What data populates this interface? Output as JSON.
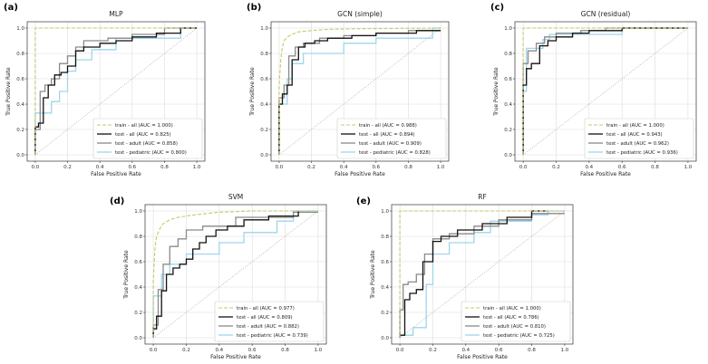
{
  "figure": {
    "width": 781,
    "height": 402
  },
  "chart_data": [
    {
      "id": "a",
      "panel_label": "(a)",
      "type": "line",
      "title": "MLP",
      "xlabel": "False Positive Rate",
      "ylabel": "True Positive Rate",
      "xlim": [
        -0.05,
        1.05
      ],
      "ylim": [
        -0.05,
        1.05
      ],
      "xticks": [
        0.0,
        0.2,
        0.4,
        0.6,
        0.8,
        1.0
      ],
      "yticks": [
        0.0,
        0.2,
        0.4,
        0.6,
        0.8,
        1.0
      ],
      "legend_loc": "lower right",
      "diagonal": true,
      "series": [
        {
          "name": "train - all (AUC = 1.000)",
          "color": "#c8c86a",
          "style": "dashed",
          "width": 1.1,
          "x": [
            0,
            0,
            1
          ],
          "y": [
            0,
            1,
            1
          ]
        },
        {
          "name": "test - all (AUC = 0.825)",
          "color": "#111111",
          "style": "solid",
          "width": 1.3,
          "x": [
            0,
            0,
            0.02,
            0.02,
            0.05,
            0.05,
            0.08,
            0.08,
            0.12,
            0.12,
            0.16,
            0.16,
            0.2,
            0.2,
            0.25,
            0.25,
            0.3,
            0.3,
            0.4,
            0.4,
            0.5,
            0.5,
            0.6,
            0.6,
            0.75,
            0.75,
            0.9,
            0.9,
            1
          ],
          "y": [
            0,
            0.22,
            0.22,
            0.25,
            0.25,
            0.45,
            0.45,
            0.55,
            0.55,
            0.63,
            0.63,
            0.65,
            0.65,
            0.7,
            0.7,
            0.82,
            0.82,
            0.85,
            0.85,
            0.88,
            0.88,
            0.9,
            0.9,
            0.93,
            0.93,
            0.96,
            0.96,
            1.0,
            1.0
          ]
        },
        {
          "name": "test - adult (AUC = 0.858)",
          "color": "#8a8a8a",
          "style": "solid",
          "width": 1.3,
          "x": [
            0,
            0,
            0.03,
            0.03,
            0.06,
            0.06,
            0.1,
            0.1,
            0.15,
            0.15,
            0.2,
            0.2,
            0.25,
            0.25,
            0.3,
            0.3,
            0.45,
            0.45,
            0.6,
            0.6,
            0.8,
            0.8,
            1
          ],
          "y": [
            0,
            0.2,
            0.2,
            0.5,
            0.5,
            0.55,
            0.55,
            0.6,
            0.6,
            0.72,
            0.72,
            0.78,
            0.78,
            0.85,
            0.85,
            0.9,
            0.9,
            0.92,
            0.92,
            0.95,
            0.95,
            1.0,
            1.0
          ]
        },
        {
          "name": "test - pediatric (AUC = 0.800)",
          "color": "#9fd6ea",
          "style": "solid",
          "width": 1.3,
          "x": [
            0,
            0,
            0.1,
            0.1,
            0.15,
            0.15,
            0.2,
            0.2,
            0.25,
            0.25,
            0.35,
            0.35,
            0.5,
            0.5,
            0.9,
            0.9,
            1
          ],
          "y": [
            0,
            0.33,
            0.33,
            0.42,
            0.42,
            0.5,
            0.5,
            0.66,
            0.66,
            0.75,
            0.75,
            0.83,
            0.83,
            0.92,
            0.92,
            1.0,
            1.0
          ]
        }
      ]
    },
    {
      "id": "b",
      "panel_label": "(b)",
      "type": "line",
      "title": "GCN (simple)",
      "xlabel": "False Positive Rate",
      "ylabel": "True Positive Rate",
      "xlim": [
        -0.05,
        1.05
      ],
      "ylim": [
        -0.05,
        1.05
      ],
      "xticks": [
        0.0,
        0.2,
        0.4,
        0.6,
        0.8,
        1.0
      ],
      "yticks": [
        0.0,
        0.2,
        0.4,
        0.6,
        0.8,
        1.0
      ],
      "legend_loc": "lower right",
      "diagonal": true,
      "series": [
        {
          "name": "train - all (AUC = 0.988)",
          "color": "#c8c86a",
          "style": "dashed",
          "width": 1.1,
          "x": [
            0,
            0,
            0.01,
            0.02,
            0.03,
            0.05,
            0.08,
            0.12,
            0.2,
            0.3,
            0.5,
            1
          ],
          "y": [
            0,
            0.55,
            0.75,
            0.85,
            0.9,
            0.93,
            0.95,
            0.97,
            0.98,
            0.99,
            0.995,
            1.0
          ]
        },
        {
          "name": "test - all (AUC = 0.894)",
          "color": "#111111",
          "style": "solid",
          "width": 1.3,
          "x": [
            0,
            0,
            0.02,
            0.02,
            0.05,
            0.05,
            0.08,
            0.08,
            0.12,
            0.12,
            0.16,
            0.16,
            0.22,
            0.22,
            0.3,
            0.3,
            0.45,
            0.45,
            0.6,
            0.6,
            0.85,
            0.85,
            1
          ],
          "y": [
            0,
            0.4,
            0.4,
            0.48,
            0.48,
            0.55,
            0.55,
            0.75,
            0.75,
            0.85,
            0.85,
            0.88,
            0.88,
            0.9,
            0.9,
            0.92,
            0.92,
            0.94,
            0.94,
            0.96,
            0.96,
            0.98,
            0.98
          ]
        },
        {
          "name": "test - adult (AUC = 0.909)",
          "color": "#8a8a8a",
          "style": "solid",
          "width": 1.3,
          "x": [
            0,
            0,
            0.03,
            0.03,
            0.06,
            0.06,
            0.1,
            0.1,
            0.15,
            0.15,
            0.25,
            0.25,
            0.4,
            0.4,
            0.6,
            0.6,
            0.8,
            0.8,
            1
          ],
          "y": [
            0,
            0.45,
            0.45,
            0.55,
            0.55,
            0.78,
            0.78,
            0.85,
            0.85,
            0.88,
            0.88,
            0.92,
            0.92,
            0.94,
            0.94,
            0.96,
            0.96,
            0.98,
            0.98
          ]
        },
        {
          "name": "test - pediatric (AUC = 0.828)",
          "color": "#9fd6ea",
          "style": "solid",
          "width": 1.3,
          "x": [
            0,
            0,
            0.05,
            0.05,
            0.08,
            0.08,
            0.15,
            0.15,
            0.4,
            0.4,
            0.6,
            0.6,
            0.95,
            0.95,
            1
          ],
          "y": [
            0,
            0.4,
            0.4,
            0.6,
            0.6,
            0.72,
            0.72,
            0.8,
            0.8,
            0.88,
            0.88,
            0.92,
            0.92,
            1.0,
            1.0
          ]
        }
      ]
    },
    {
      "id": "c",
      "panel_label": "(c)",
      "type": "line",
      "title": "GCN (residual)",
      "xlabel": "False Positive Rate",
      "ylabel": "True Positive Rate",
      "xlim": [
        -0.05,
        1.05
      ],
      "ylim": [
        -0.05,
        1.05
      ],
      "xticks": [
        0.0,
        0.2,
        0.4,
        0.6,
        0.8,
        1.0
      ],
      "yticks": [
        0.0,
        0.2,
        0.4,
        0.6,
        0.8,
        1.0
      ],
      "legend_loc": "lower right",
      "diagonal": true,
      "series": [
        {
          "name": "train - all (AUC = 1.000)",
          "color": "#c8c86a",
          "style": "dashed",
          "width": 1.1,
          "x": [
            0,
            0,
            1
          ],
          "y": [
            0,
            1,
            1
          ]
        },
        {
          "name": "test - all (AUC = 0.943)",
          "color": "#111111",
          "style": "solid",
          "width": 1.3,
          "x": [
            0,
            0,
            0.02,
            0.02,
            0.05,
            0.05,
            0.1,
            0.1,
            0.15,
            0.15,
            0.2,
            0.2,
            0.3,
            0.3,
            0.4,
            0.4,
            0.6,
            0.6,
            1
          ],
          "y": [
            0,
            0.55,
            0.55,
            0.68,
            0.68,
            0.72,
            0.72,
            0.86,
            0.86,
            0.9,
            0.9,
            0.93,
            0.93,
            0.96,
            0.96,
            0.98,
            0.98,
            1.0,
            1.0
          ]
        },
        {
          "name": "test - adult (AUC = 0.962)",
          "color": "#8a8a8a",
          "style": "solid",
          "width": 1.3,
          "x": [
            0,
            0,
            0.03,
            0.03,
            0.08,
            0.08,
            0.13,
            0.13,
            0.2,
            0.2,
            0.35,
            0.35,
            0.5,
            0.5,
            1
          ],
          "y": [
            0,
            0.72,
            0.72,
            0.82,
            0.82,
            0.88,
            0.88,
            0.93,
            0.93,
            0.96,
            0.96,
            0.98,
            0.98,
            1.0,
            1.0
          ]
        },
        {
          "name": "test - pediatric (AUC = 0.936)",
          "color": "#9fd6ea",
          "style": "solid",
          "width": 1.3,
          "x": [
            0,
            0,
            0.02,
            0.02,
            0.12,
            0.12,
            0.16,
            0.16,
            0.6,
            0.6,
            1
          ],
          "y": [
            0,
            0.5,
            0.5,
            0.84,
            0.84,
            0.91,
            0.91,
            0.95,
            0.95,
            1.0,
            1.0
          ]
        }
      ]
    },
    {
      "id": "d",
      "panel_label": "(d)",
      "type": "line",
      "title": "SVM",
      "xlabel": "False Positive Rate",
      "ylabel": "True Positive Rate",
      "xlim": [
        -0.05,
        1.05
      ],
      "ylim": [
        -0.05,
        1.05
      ],
      "xticks": [
        0.0,
        0.2,
        0.4,
        0.6,
        0.8,
        1.0
      ],
      "yticks": [
        0.0,
        0.2,
        0.4,
        0.6,
        0.8,
        1.0
      ],
      "legend_loc": "lower right",
      "diagonal": true,
      "series": [
        {
          "name": "train - all (AUC = 0.977)",
          "color": "#c8c86a",
          "style": "dashed",
          "width": 1.1,
          "x": [
            0,
            0,
            0.01,
            0.02,
            0.04,
            0.06,
            0.1,
            0.15,
            0.25,
            0.4,
            0.6,
            1
          ],
          "y": [
            0,
            0.45,
            0.7,
            0.8,
            0.86,
            0.9,
            0.93,
            0.95,
            0.97,
            0.99,
            1.0,
            1.0
          ]
        },
        {
          "name": "test - all (AUC = 0.809)",
          "color": "#111111",
          "style": "solid",
          "width": 1.3,
          "x": [
            0,
            0,
            0.02,
            0.02,
            0.05,
            0.05,
            0.08,
            0.08,
            0.12,
            0.12,
            0.16,
            0.16,
            0.2,
            0.2,
            0.24,
            0.24,
            0.28,
            0.28,
            0.32,
            0.32,
            0.38,
            0.38,
            0.45,
            0.45,
            0.55,
            0.55,
            0.7,
            0.7,
            0.88,
            0.88
          ],
          "y": [
            0,
            0.07,
            0.07,
            0.17,
            0.17,
            0.37,
            0.37,
            0.5,
            0.5,
            0.55,
            0.55,
            0.58,
            0.58,
            0.62,
            0.62,
            0.7,
            0.7,
            0.75,
            0.75,
            0.8,
            0.8,
            0.85,
            0.85,
            0.88,
            0.88,
            0.93,
            0.93,
            0.96,
            0.96,
            1.0
          ]
        },
        {
          "name": "test - adult (AUC = 0.882)",
          "color": "#8a8a8a",
          "style": "solid",
          "width": 1.3,
          "x": [
            0,
            0,
            0.03,
            0.03,
            0.06,
            0.06,
            0.1,
            0.1,
            0.15,
            0.15,
            0.2,
            0.2,
            0.3,
            0.3,
            0.5,
            0.5,
            0.85,
            0.85,
            1
          ],
          "y": [
            0,
            0.1,
            0.1,
            0.38,
            0.38,
            0.58,
            0.58,
            0.72,
            0.72,
            0.78,
            0.78,
            0.85,
            0.85,
            0.88,
            0.88,
            0.95,
            0.95,
            0.99,
            0.99
          ]
        },
        {
          "name": "test - pediatric (AUC = 0.739)",
          "color": "#9fd6ea",
          "style": "solid",
          "width": 1.3,
          "x": [
            0,
            0,
            0.05,
            0.05,
            0.1,
            0.1,
            0.2,
            0.2,
            0.4,
            0.4,
            0.55,
            0.55,
            0.75,
            0.75,
            0.85,
            0.85,
            1
          ],
          "y": [
            0,
            0.33,
            0.33,
            0.5,
            0.5,
            0.58,
            0.58,
            0.66,
            0.66,
            0.75,
            0.75,
            0.83,
            0.83,
            0.92,
            0.92,
            1.0,
            1.0
          ]
        }
      ]
    },
    {
      "id": "e",
      "panel_label": "(e)",
      "type": "line",
      "title": "RF",
      "xlabel": "False Positive Rate",
      "ylabel": "True Positive Rate",
      "xlim": [
        -0.05,
        1.05
      ],
      "ylim": [
        -0.05,
        1.05
      ],
      "xticks": [
        0.0,
        0.2,
        0.4,
        0.6,
        0.8,
        1.0
      ],
      "yticks": [
        0.0,
        0.2,
        0.4,
        0.6,
        0.8,
        1.0
      ],
      "legend_loc": "lower right",
      "diagonal": true,
      "series": [
        {
          "name": "train - all (AUC = 1.000)",
          "color": "#c8c86a",
          "style": "dashed",
          "width": 1.1,
          "x": [
            0,
            0,
            1
          ],
          "y": [
            0,
            1,
            1
          ]
        },
        {
          "name": "test - all (AUC = 0.786)",
          "color": "#111111",
          "style": "solid",
          "width": 1.3,
          "x": [
            0,
            0,
            0.03,
            0.03,
            0.06,
            0.06,
            0.1,
            0.1,
            0.14,
            0.14,
            0.2,
            0.2,
            0.25,
            0.25,
            0.35,
            0.35,
            0.5,
            0.5,
            0.65,
            0.65,
            0.8,
            0.8,
            0.9
          ],
          "y": [
            0,
            0.02,
            0.02,
            0.3,
            0.3,
            0.35,
            0.35,
            0.38,
            0.38,
            0.6,
            0.6,
            0.76,
            0.76,
            0.8,
            0.8,
            0.85,
            0.85,
            0.9,
            0.9,
            0.95,
            0.95,
            1.0,
            1.0
          ]
        },
        {
          "name": "test - adult (AUC = 0.810)",
          "color": "#8a8a8a",
          "style": "solid",
          "width": 1.3,
          "x": [
            0,
            0,
            0.02,
            0.02,
            0.05,
            0.05,
            0.1,
            0.1,
            0.15,
            0.15,
            0.2,
            0.2,
            0.3,
            0.3,
            0.45,
            0.45,
            0.6,
            0.6,
            0.8,
            0.8,
            1
          ],
          "y": [
            0,
            0.22,
            0.22,
            0.42,
            0.42,
            0.44,
            0.44,
            0.5,
            0.5,
            0.66,
            0.66,
            0.78,
            0.78,
            0.82,
            0.82,
            0.88,
            0.88,
            0.93,
            0.93,
            0.98,
            0.98
          ]
        },
        {
          "name": "test - pediatric (AUC = 0.725)",
          "color": "#9fd6ea",
          "style": "solid",
          "width": 1.3,
          "x": [
            0,
            0,
            0.08,
            0.08,
            0.16,
            0.16,
            0.2,
            0.2,
            0.3,
            0.3,
            0.45,
            0.45,
            0.55,
            0.55,
            0.8,
            0.8,
            0.9,
            0.9,
            1
          ],
          "y": [
            0,
            0.02,
            0.02,
            0.08,
            0.08,
            0.42,
            0.42,
            0.66,
            0.66,
            0.75,
            0.75,
            0.83,
            0.83,
            0.92,
            0.92,
            0.97,
            0.97,
            1.0,
            1.0
          ]
        }
      ]
    }
  ]
}
